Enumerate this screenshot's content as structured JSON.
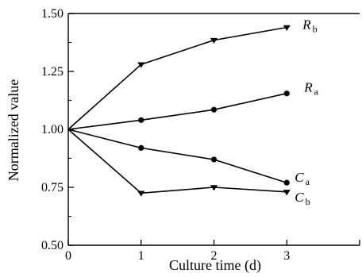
{
  "chart_data": {
    "type": "line",
    "title": "",
    "xlabel": "Culture time (d)",
    "ylabel": "Normalized value",
    "xlim": [
      0,
      4
    ],
    "ylim": [
      0.5,
      1.5
    ],
    "x_ticks": [
      "0",
      "1",
      "2",
      "3"
    ],
    "y_ticks": [
      "0.50",
      "0.75",
      "1.00",
      "1.25",
      "1.50"
    ],
    "grid": false,
    "legend": "inline-labels-right",
    "x": [
      0,
      1,
      2,
      3
    ],
    "series": [
      {
        "label_main": "R",
        "label_sub": "b",
        "marker": "triangle-down",
        "values": [
          1.0,
          1.28,
          1.385,
          1.44
        ]
      },
      {
        "label_main": "R",
        "label_sub": "a",
        "marker": "circle",
        "values": [
          1.0,
          1.04,
          1.085,
          1.155
        ]
      },
      {
        "label_main": "C",
        "label_sub": "a",
        "marker": "circle",
        "values": [
          1.0,
          0.92,
          0.87,
          0.77
        ]
      },
      {
        "label_main": "C",
        "label_sub": "b",
        "marker": "triangle-down",
        "values": [
          1.0,
          0.725,
          0.75,
          0.73
        ]
      }
    ],
    "colors": {
      "line": "#000000",
      "marker": "#000000"
    }
  }
}
